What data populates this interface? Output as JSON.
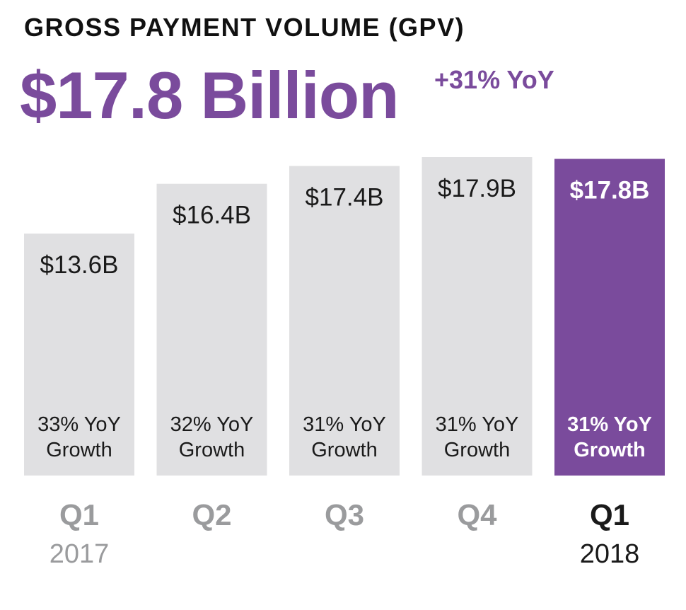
{
  "header": {
    "title": "GROSS PAYMENT VOLUME (GPV)",
    "headline_value": "$17.8 Billion",
    "headline_growth": "+31% YoY"
  },
  "colors": {
    "accent": "#7a4b9c",
    "bar_default": "#e0e0e2",
    "text_dark": "#1a1a1a",
    "text_muted": "#9a9b9d",
    "text_on_accent": "#ffffff"
  },
  "chart_data": {
    "type": "bar",
    "categories": [
      "Q1",
      "Q2",
      "Q3",
      "Q4",
      "Q1"
    ],
    "years": [
      "2017",
      "",
      "",
      "",
      "2018"
    ],
    "values": [
      13.6,
      16.4,
      17.4,
      17.9,
      17.8
    ],
    "value_labels": [
      "$13.6B",
      "$16.4B",
      "$17.4B",
      "$17.9B",
      "$17.8B"
    ],
    "growth_labels": [
      [
        "33% YoY",
        "Growth"
      ],
      [
        "32% YoY",
        "Growth"
      ],
      [
        "31% YoY",
        "Growth"
      ],
      [
        "31% YoY",
        "Growth"
      ],
      [
        "31% YoY",
        "Growth"
      ]
    ],
    "highlight_index": 4,
    "grid": false
  }
}
